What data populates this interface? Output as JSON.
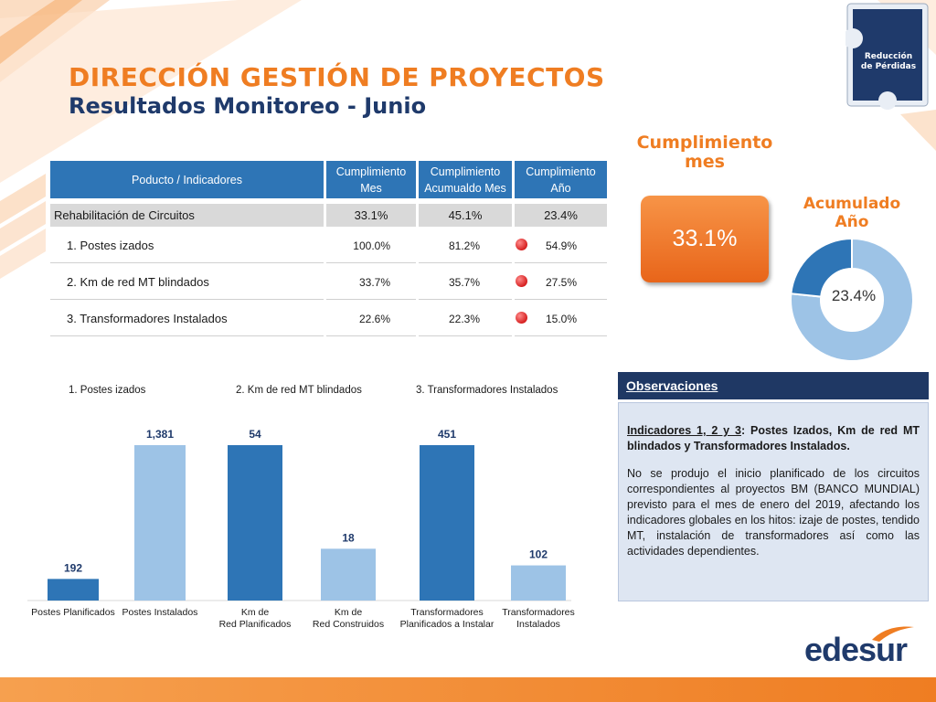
{
  "header": {
    "title": "DIRECCIÓN GESTIÓN DE PROYECTOS",
    "subtitle": "Resultados Monitoreo - Junio"
  },
  "badge": {
    "line1": "Reducción",
    "line2": "de Pérdidas"
  },
  "table": {
    "headers": {
      "product": "Poducto / Indicadores",
      "month_l1": "Cumplimiento",
      "month_l2": "Mes",
      "acc_l1": "Cumplimiento",
      "acc_l2": "Acumualdo Mes",
      "year_l1": "Cumplimiento",
      "year_l2": "Año"
    },
    "rows": [
      {
        "name": "Rehabilitación de Circuitos",
        "month": "33.1%",
        "acc": "45.1%",
        "year": "23.4%"
      },
      {
        "name": "1. Postes izados",
        "month": "100.0%",
        "acc": "81.2%",
        "year": "54.9%"
      },
      {
        "name": "2. Km de red MT blindados",
        "month": "33.7%",
        "acc": "35.7%",
        "year": "27.5%"
      },
      {
        "name": "3. Transformadores Instalados",
        "month": "22.6%",
        "acc": "22.3%",
        "year": "15.0%"
      }
    ],
    "status_color": "#D62020"
  },
  "kpi": {
    "month_title_l1": "Cumplimiento",
    "month_title_l2": "mes",
    "month_value": "33.1%",
    "year_title_l1": "Acumulado",
    "year_title_l2": "Año",
    "year_value": "23.4%",
    "year_fraction": 0.234
  },
  "observations": {
    "title": "Observaciones",
    "p1_underlined": "Indicadores 1, 2 y 3",
    "p1_rest": ": Postes Izados, Km de red MT blindados y Transformadores Instalados.",
    "p2": "No se produjo el inicio planificado de los circuitos correspondientes al proyectos BM (BANCO MUNDIAL) previsto para el mes de enero del 2019, afectando los indicadores globales en los hitos: izaje de postes, tendido MT, instalación de transformadores así como las actividades dependientes."
  },
  "chart_data": [
    {
      "type": "bar",
      "title": "1. Postes izados",
      "categories": [
        "Postes Planificados",
        "Postes Instalados"
      ],
      "values": [
        192,
        1381
      ],
      "labels": [
        "192",
        "1,381"
      ]
    },
    {
      "type": "bar",
      "title": "2. Km de red MT blindados",
      "categories": [
        "Km de Red Planificados",
        "Km de Red Construidos"
      ],
      "values": [
        54,
        18
      ],
      "labels": [
        "54",
        "18"
      ]
    },
    {
      "type": "bar",
      "title": "3. Transformadores Instalados",
      "categories": [
        "Transformadores Planificados a Instalar",
        "Transformadores Instalados"
      ],
      "values": [
        451,
        102
      ],
      "labels": [
        "451",
        "102"
      ]
    }
  ],
  "colors": {
    "dark_bar": "#2E75B6",
    "light_bar": "#9DC3E6",
    "accent": "#EF7D22",
    "navy": "#1F3A6B"
  },
  "logo": {
    "text": "edesur"
  }
}
